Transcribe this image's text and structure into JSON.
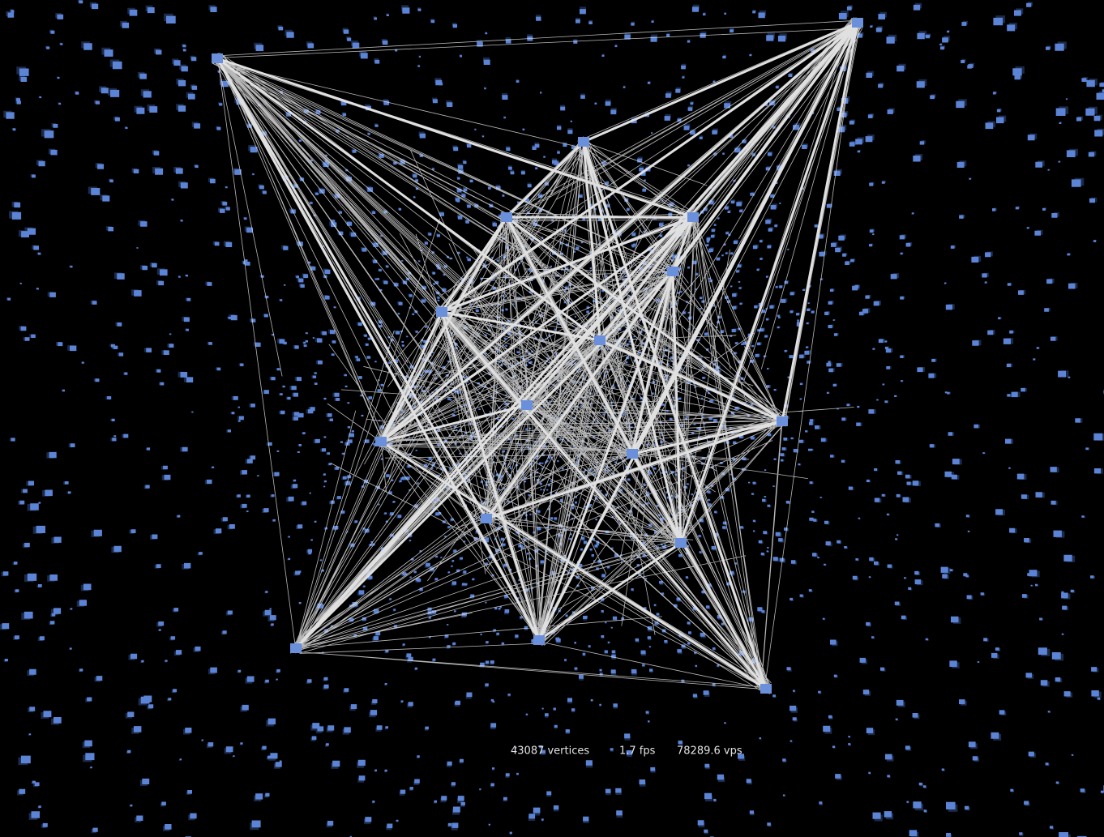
{
  "status": {
    "vertices": "43087 vertices",
    "fps": "1.7 fps",
    "vps": "78289.6 vps"
  }
}
